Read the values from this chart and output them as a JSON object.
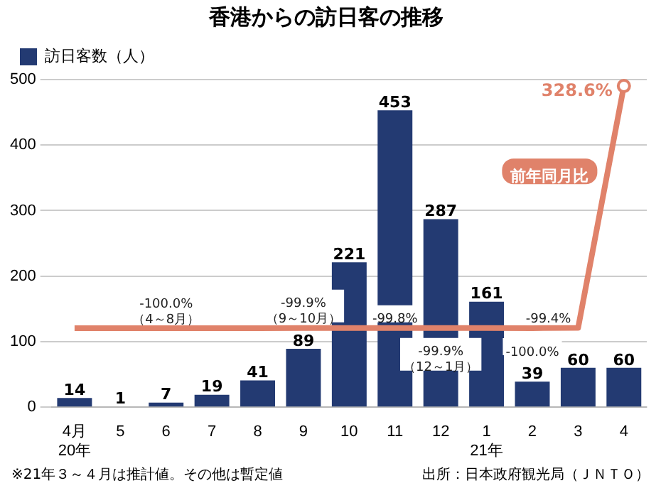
{
  "chart_data": {
    "type": "bar",
    "title": "香港からの訪日客の推移",
    "categories": [
      "4月\n20年",
      "5",
      "6",
      "7",
      "8",
      "9",
      "10",
      "11",
      "12",
      "1\n21年",
      "2",
      "3",
      "4"
    ],
    "series": [
      {
        "name": "訪日客数（人）",
        "color": "#233a72",
        "values": [
          14,
          1,
          7,
          19,
          41,
          89,
          221,
          453,
          287,
          161,
          39,
          60,
          60
        ],
        "value_labels": [
          "14",
          "1",
          "7",
          "19",
          "41",
          "89",
          "221",
          "453",
          "287",
          "161",
          "39",
          "60",
          "60"
        ]
      },
      {
        "name": "前年同月比",
        "type": "line",
        "axis": "y2",
        "color": "#e0826a",
        "values": [
          -100,
          -100,
          -100,
          -100,
          -100,
          -99.9,
          -99.9,
          -99.8,
          -99.9,
          -99.9,
          -100,
          -99.4,
          328.6
        ],
        "value_labels": [
          null,
          null,
          "-100.0%（4～8月）",
          null,
          null,
          "-99.9%（9～10月）",
          null,
          "-99.8%",
          "-99.9%（12～1月）",
          null,
          "-100.0%",
          "-99.4%",
          "328.6%"
        ]
      }
    ],
    "ylim": [
      0,
      500
    ],
    "y2lim": [
      -240,
      340
    ],
    "yticks": [
      0,
      100,
      200,
      300,
      400,
      500
    ],
    "grid": "y",
    "legend": "top left",
    "annotations": [
      "※21年３～４月は推計値。その他は暫定値",
      "出所：日本政府観光局（ＪＮＴＯ）"
    ]
  }
}
